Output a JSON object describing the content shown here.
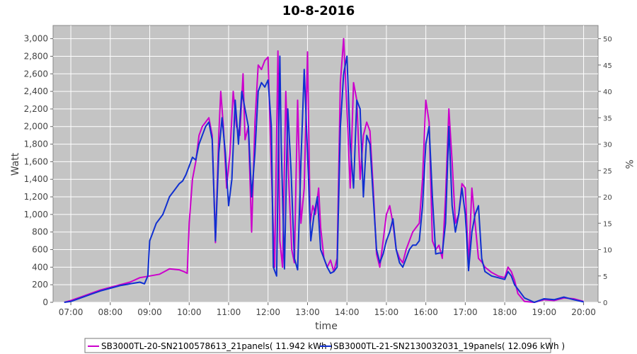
{
  "chart_data": {
    "type": "line",
    "title": "10-8-2016",
    "xlabel": "time",
    "ylabel": "Watt",
    "y2label": "%",
    "ylim": [
      0,
      3150
    ],
    "y2lim": [
      0,
      52.5
    ],
    "xlim": [
      "06:33",
      "20:22"
    ],
    "x_ticks": [
      "07:00",
      "08:00",
      "09:00",
      "10:00",
      "11:00",
      "12:00",
      "13:00",
      "14:00",
      "15:00",
      "16:00",
      "17:00",
      "18:00",
      "19:00",
      "20:00"
    ],
    "y_ticks": [
      "0",
      "200",
      "400",
      "600",
      "800",
      "1,000",
      "1,200",
      "1,400",
      "1,600",
      "1,800",
      "2,000",
      "2,200",
      "2,400",
      "2,600",
      "2,800",
      "3,000"
    ],
    "y2_ticks": [
      "0",
      "5",
      "10",
      "15",
      "20",
      "25",
      "30",
      "35",
      "40",
      "45",
      "50"
    ],
    "grid": true,
    "legend_position": "bottom",
    "series": [
      {
        "name": "SB3000TL-20-SN2100578613_21panels( 11.942 kWh )",
        "color": "#cc00cc",
        "points": [
          [
            "06:50",
            0
          ],
          [
            "07:00",
            20
          ],
          [
            "07:15",
            60
          ],
          [
            "07:30",
            100
          ],
          [
            "07:45",
            140
          ],
          [
            "08:00",
            170
          ],
          [
            "08:15",
            200
          ],
          [
            "08:30",
            230
          ],
          [
            "08:45",
            280
          ],
          [
            "09:00",
            300
          ],
          [
            "09:15",
            320
          ],
          [
            "09:30",
            380
          ],
          [
            "09:45",
            370
          ],
          [
            "09:52",
            350
          ],
          [
            "09:57",
            330
          ],
          [
            "10:00",
            900
          ],
          [
            "10:05",
            1400
          ],
          [
            "10:10",
            1600
          ],
          [
            "10:15",
            1900
          ],
          [
            "10:20",
            2000
          ],
          [
            "10:25",
            2050
          ],
          [
            "10:30",
            2100
          ],
          [
            "10:35",
            1900
          ],
          [
            "10:40",
            680
          ],
          [
            "10:45",
            1900
          ],
          [
            "10:48",
            2400
          ],
          [
            "10:52",
            2000
          ],
          [
            "10:57",
            1300
          ],
          [
            "11:02",
            1700
          ],
          [
            "11:07",
            2400
          ],
          [
            "11:12",
            2000
          ],
          [
            "11:17",
            1900
          ],
          [
            "11:22",
            2600
          ],
          [
            "11:25",
            1850
          ],
          [
            "11:30",
            2000
          ],
          [
            "11:35",
            800
          ],
          [
            "11:40",
            2050
          ],
          [
            "11:45",
            2700
          ],
          [
            "11:50",
            2650
          ],
          [
            "11:55",
            2750
          ],
          [
            "12:00",
            2790
          ],
          [
            "12:05",
            1500
          ],
          [
            "12:10",
            400
          ],
          [
            "12:15",
            2860
          ],
          [
            "12:18",
            700
          ],
          [
            "12:22",
            400
          ],
          [
            "12:27",
            2400
          ],
          [
            "12:32",
            1300
          ],
          [
            "12:36",
            600
          ],
          [
            "12:40",
            450
          ],
          [
            "12:45",
            2300
          ],
          [
            "12:50",
            900
          ],
          [
            "12:55",
            1300
          ],
          [
            "13:00",
            2850
          ],
          [
            "13:04",
            900
          ],
          [
            "13:08",
            1100
          ],
          [
            "13:12",
            1000
          ],
          [
            "13:17",
            1300
          ],
          [
            "13:20",
            850
          ],
          [
            "13:25",
            500
          ],
          [
            "13:30",
            400
          ],
          [
            "13:35",
            480
          ],
          [
            "13:40",
            350
          ],
          [
            "13:45",
            500
          ],
          [
            "13:50",
            2500
          ],
          [
            "13:55",
            3000
          ],
          [
            "14:00",
            2200
          ],
          [
            "14:05",
            1300
          ],
          [
            "14:10",
            2500
          ],
          [
            "14:15",
            2300
          ],
          [
            "14:20",
            1400
          ],
          [
            "14:25",
            1900
          ],
          [
            "14:30",
            2050
          ],
          [
            "14:35",
            1950
          ],
          [
            "14:40",
            1300
          ],
          [
            "14:45",
            550
          ],
          [
            "14:50",
            400
          ],
          [
            "14:55",
            700
          ],
          [
            "15:00",
            1000
          ],
          [
            "15:05",
            1100
          ],
          [
            "15:10",
            900
          ],
          [
            "15:15",
            600
          ],
          [
            "15:20",
            500
          ],
          [
            "15:25",
            450
          ],
          [
            "15:30",
            600
          ],
          [
            "15:35",
            700
          ],
          [
            "15:40",
            800
          ],
          [
            "15:45",
            850
          ],
          [
            "15:50",
            900
          ],
          [
            "15:55",
            1400
          ],
          [
            "16:00",
            2300
          ],
          [
            "16:05",
            2050
          ],
          [
            "16:10",
            700
          ],
          [
            "16:15",
            600
          ],
          [
            "16:20",
            650
          ],
          [
            "16:25",
            500
          ],
          [
            "16:30",
            1200
          ],
          [
            "16:35",
            2200
          ],
          [
            "16:40",
            1600
          ],
          [
            "16:45",
            900
          ],
          [
            "16:50",
            1000
          ],
          [
            "16:55",
            1350
          ],
          [
            "17:00",
            1300
          ],
          [
            "17:05",
            400
          ],
          [
            "17:10",
            1300
          ],
          [
            "17:15",
            900
          ],
          [
            "17:20",
            500
          ],
          [
            "17:25",
            460
          ],
          [
            "17:30",
            400
          ],
          [
            "17:40",
            340
          ],
          [
            "17:50",
            300
          ],
          [
            "18:00",
            280
          ],
          [
            "18:05",
            400
          ],
          [
            "18:10",
            350
          ],
          [
            "18:15",
            250
          ],
          [
            "18:20",
            100
          ],
          [
            "18:30",
            10
          ],
          [
            "18:45",
            0
          ],
          [
            "19:00",
            30
          ],
          [
            "19:15",
            20
          ],
          [
            "19:30",
            50
          ],
          [
            "19:45",
            40
          ],
          [
            "20:00",
            10
          ]
        ]
      },
      {
        "name": "SB3000TL-21-SN2130032031_19panels( 12.096 kWh )",
        "color": "#1030d0",
        "points": [
          [
            "06:50",
            0
          ],
          [
            "07:00",
            10
          ],
          [
            "07:15",
            50
          ],
          [
            "07:30",
            90
          ],
          [
            "07:45",
            130
          ],
          [
            "08:00",
            160
          ],
          [
            "08:15",
            190
          ],
          [
            "08:30",
            210
          ],
          [
            "08:45",
            230
          ],
          [
            "08:52",
            210
          ],
          [
            "08:57",
            300
          ],
          [
            "09:00",
            700
          ],
          [
            "09:05",
            800
          ],
          [
            "09:10",
            900
          ],
          [
            "09:15",
            950
          ],
          [
            "09:20",
            1000
          ],
          [
            "09:25",
            1100
          ],
          [
            "09:30",
            1200
          ],
          [
            "09:40",
            1300
          ],
          [
            "09:45",
            1350
          ],
          [
            "09:50",
            1380
          ],
          [
            "09:55",
            1450
          ],
          [
            "10:00",
            1550
          ],
          [
            "10:05",
            1650
          ],
          [
            "10:10",
            1620
          ],
          [
            "10:15",
            1800
          ],
          [
            "10:20",
            1900
          ],
          [
            "10:25",
            2000
          ],
          [
            "10:30",
            2050
          ],
          [
            "10:35",
            1850
          ],
          [
            "10:40",
            700
          ],
          [
            "10:45",
            1700
          ],
          [
            "10:50",
            2100
          ],
          [
            "10:55",
            1700
          ],
          [
            "11:00",
            1100
          ],
          [
            "11:05",
            1400
          ],
          [
            "11:10",
            2300
          ],
          [
            "11:15",
            1800
          ],
          [
            "11:20",
            2400
          ],
          [
            "11:25",
            2200
          ],
          [
            "11:30",
            2000
          ],
          [
            "11:35",
            1200
          ],
          [
            "11:40",
            1700
          ],
          [
            "11:45",
            2400
          ],
          [
            "11:50",
            2500
          ],
          [
            "11:55",
            2450
          ],
          [
            "12:00",
            2530
          ],
          [
            "12:05",
            2000
          ],
          [
            "12:08",
            400
          ],
          [
            "12:13",
            300
          ],
          [
            "12:18",
            2800
          ],
          [
            "12:20",
            1800
          ],
          [
            "12:25",
            380
          ],
          [
            "12:30",
            2200
          ],
          [
            "12:35",
            1500
          ],
          [
            "12:40",
            500
          ],
          [
            "12:45",
            370
          ],
          [
            "12:50",
            1600
          ],
          [
            "12:55",
            2650
          ],
          [
            "13:00",
            1700
          ],
          [
            "13:05",
            700
          ],
          [
            "13:10",
            1000
          ],
          [
            "13:15",
            1200
          ],
          [
            "13:20",
            600
          ],
          [
            "13:25",
            500
          ],
          [
            "13:30",
            400
          ],
          [
            "13:35",
            330
          ],
          [
            "13:40",
            350
          ],
          [
            "13:45",
            400
          ],
          [
            "13:50",
            2000
          ],
          [
            "13:55",
            2600
          ],
          [
            "14:00",
            2800
          ],
          [
            "14:05",
            1800
          ],
          [
            "14:10",
            1300
          ],
          [
            "14:15",
            2300
          ],
          [
            "14:20",
            2200
          ],
          [
            "14:25",
            1200
          ],
          [
            "14:30",
            1900
          ],
          [
            "14:35",
            1800
          ],
          [
            "14:40",
            1200
          ],
          [
            "14:45",
            600
          ],
          [
            "14:50",
            450
          ],
          [
            "14:55",
            550
          ],
          [
            "15:00",
            700
          ],
          [
            "15:05",
            800
          ],
          [
            "15:10",
            950
          ],
          [
            "15:15",
            600
          ],
          [
            "15:20",
            450
          ],
          [
            "15:25",
            400
          ],
          [
            "15:30",
            500
          ],
          [
            "15:35",
            600
          ],
          [
            "15:40",
            650
          ],
          [
            "15:45",
            650
          ],
          [
            "15:50",
            700
          ],
          [
            "15:55",
            1100
          ],
          [
            "16:00",
            1800
          ],
          [
            "16:05",
            2000
          ],
          [
            "16:10",
            1200
          ],
          [
            "16:15",
            550
          ],
          [
            "16:20",
            560
          ],
          [
            "16:25",
            560
          ],
          [
            "16:30",
            900
          ],
          [
            "16:35",
            2000
          ],
          [
            "16:40",
            1100
          ],
          [
            "16:45",
            800
          ],
          [
            "16:50",
            1000
          ],
          [
            "16:55",
            1300
          ],
          [
            "17:00",
            1000
          ],
          [
            "17:05",
            360
          ],
          [
            "17:10",
            800
          ],
          [
            "17:15",
            1000
          ],
          [
            "17:20",
            1100
          ],
          [
            "17:25",
            500
          ],
          [
            "17:30",
            350
          ],
          [
            "17:40",
            300
          ],
          [
            "17:50",
            280
          ],
          [
            "18:00",
            260
          ],
          [
            "18:05",
            350
          ],
          [
            "18:10",
            300
          ],
          [
            "18:15",
            200
          ],
          [
            "18:20",
            150
          ],
          [
            "18:30",
            50
          ],
          [
            "18:45",
            0
          ],
          [
            "19:00",
            40
          ],
          [
            "19:15",
            30
          ],
          [
            "19:30",
            60
          ],
          [
            "19:45",
            30
          ],
          [
            "20:00",
            5
          ]
        ]
      }
    ]
  }
}
